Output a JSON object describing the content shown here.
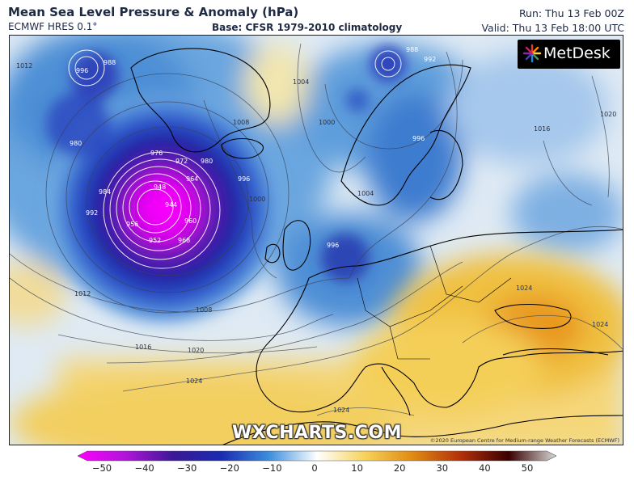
{
  "header": {
    "title": "Mean Sea Level Pressure & Anomaly (hPa)",
    "model": "ECMWF HRES 0.1°",
    "base": "Base: CFSR 1979-2010 climatology",
    "run": "Run: Thu 13 Feb 00Z",
    "valid": "Valid: Thu 13 Feb 18:00 UTC"
  },
  "branding": {
    "logo": "MetDesk",
    "watermark": "WXCHARTS.COM",
    "copyright": "©2020 European Centre for Medium-range Weather Forecasts (ECMWF)"
  },
  "colorbar": {
    "ticks": [
      "−50",
      "−40",
      "−30",
      "−20",
      "−10",
      "0",
      "10",
      "20",
      "30",
      "40",
      "50"
    ],
    "colors": [
      "#ff00ff",
      "#8a1cc8",
      "#1c148c",
      "#1a3cc0",
      "#3c8ede",
      "#ffffff",
      "#f7d25a",
      "#e08a12",
      "#b2300a",
      "#3a0000",
      "#ffffff"
    ]
  },
  "isobars": {
    "center_low": "948",
    "l_944": "944",
    "l_952": "952",
    "l_956": "956",
    "l_960": "960",
    "l_964": "964",
    "l_968": "968",
    "l_972": "972",
    "l_976": "976",
    "l_980a": "980",
    "l_980b": "980",
    "l_984": "984",
    "l_988a": "988",
    "l_988b": "988",
    "l_992a": "992",
    "l_992b": "992",
    "l_996a": "996",
    "l_996b": "996",
    "l_996c": "996",
    "l_996d": "996",
    "l_1000a": "1000",
    "l_1000b": "1000",
    "l_1004a": "1004",
    "l_1004b": "1004",
    "l_1008a": "1008",
    "l_1008b": "1008",
    "l_1012a": "1012",
    "l_1012b": "1012",
    "l_1016a": "1016",
    "l_1016b": "1016",
    "l_1020a": "1020",
    "l_1020b": "1020",
    "l_1024a": "1024",
    "l_1024b": "1024",
    "l_1024c": "1024",
    "l_1024d": "1024"
  }
}
